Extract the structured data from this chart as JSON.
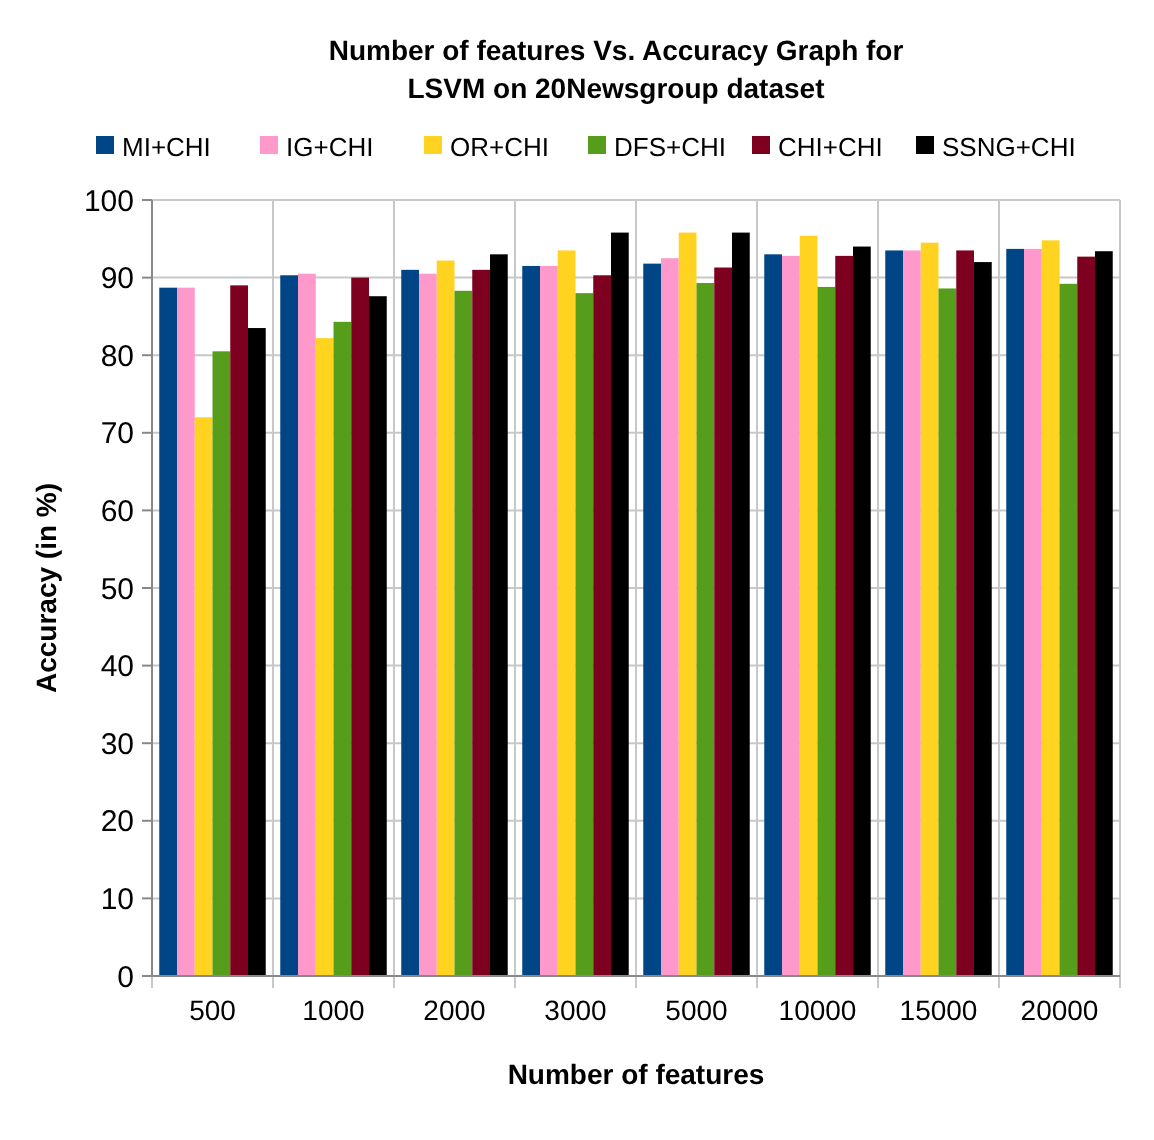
{
  "chart_data": {
    "type": "bar",
    "title": "Number of features Vs. Accuracy Graph for\nLSVM on 20Newsgroup dataset",
    "xlabel": "Number of features",
    "ylabel": "Accuracy (in %)",
    "categories": [
      "500",
      "1000",
      "2000",
      "3000",
      "5000",
      "10000",
      "15000",
      "20000"
    ],
    "series": [
      {
        "name": "MI+CHI",
        "color": "#004586",
        "values": [
          88.7,
          90.3,
          91,
          91.5,
          91.8,
          93,
          93.5,
          93.7
        ]
      },
      {
        "name": "IG+CHI",
        "color": "#ff99cc",
        "values": [
          88.7,
          90.5,
          90.5,
          91.5,
          92.5,
          92.8,
          93.5,
          93.7
        ]
      },
      {
        "name": "OR+CHI",
        "color": "#ffd320",
        "values": [
          72,
          82.2,
          92.2,
          93.5,
          95.8,
          95.4,
          94.5,
          94.8
        ]
      },
      {
        "name": "DFS+CHI",
        "color": "#579d1c",
        "values": [
          80.5,
          84.3,
          88.3,
          88,
          89.3,
          88.8,
          88.6,
          89.2
        ]
      },
      {
        "name": "CHI+CHI",
        "color": "#7e0021",
        "values": [
          89,
          90,
          91,
          90.3,
          91.3,
          92.8,
          93.5,
          92.7
        ]
      },
      {
        "name": "SSNG+CHI",
        "color": "#000000",
        "values": [
          83.5,
          87.6,
          93,
          95.8,
          95.8,
          94,
          92,
          93.4
        ]
      }
    ],
    "ylim": [
      0,
      100
    ],
    "yticks": [
      0,
      10,
      20,
      30,
      40,
      50,
      60,
      70,
      80,
      90,
      100
    ],
    "grid": true,
    "legend": "top"
  }
}
